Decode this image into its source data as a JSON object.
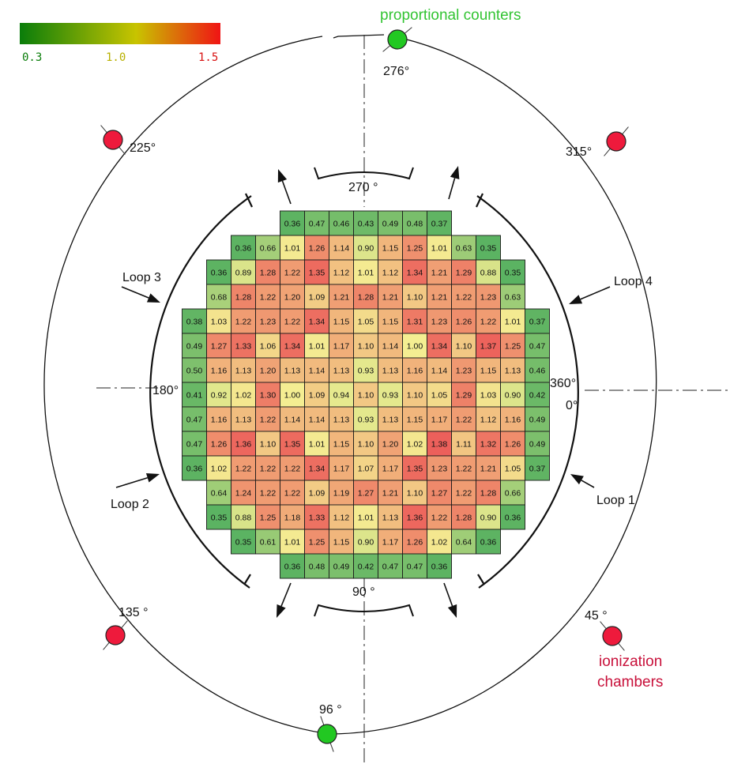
{
  "colorscale": {
    "min_label": "0.3",
    "mid_label": "1.0",
    "max_label": "1.5",
    "colors": [
      "#0a7d0a",
      "#c8c400",
      "#f01414"
    ]
  },
  "detectors": {
    "proportional_label": "proportional counters",
    "ionization_label_1": "ionization",
    "ionization_label_2": "chambers",
    "proportional_color": "#22c822",
    "ionization_color": "#ee1a3c",
    "proportional_angles": [
      "276°",
      "96 °"
    ],
    "ionization_angles": [
      "225°",
      "315°",
      "135 °",
      "45 °"
    ]
  },
  "shield_labels": {
    "top": "270 °",
    "bottom": "90 °",
    "left": "180°",
    "right_1": "360°",
    "right_2": "0°"
  },
  "loops": [
    "Loop 1",
    "Loop 2",
    "Loop 3",
    "Loop 4"
  ],
  "core_map": {
    "cols": 15,
    "rows": [
      {
        "start": 4,
        "values": [
          "0.36",
          "0.47",
          "0.46",
          "0.43",
          "0.49",
          "0.48",
          "0.37"
        ]
      },
      {
        "start": 2,
        "values": [
          "0.36",
          "0.66",
          "1.01",
          "1.26",
          "1.14",
          "0.90",
          "1.15",
          "1.25",
          "1.01",
          "0.63",
          "0.35"
        ]
      },
      {
        "start": 1,
        "values": [
          "0.36",
          "0.89",
          "1.28",
          "1.22",
          "1.35",
          "1.12",
          "1.01",
          "1.12",
          "1.34",
          "1.21",
          "1.29",
          "0.88",
          "0.35"
        ]
      },
      {
        "start": 1,
        "values": [
          "0.68",
          "1.28",
          "1.22",
          "1.20",
          "1.09",
          "1.21",
          "1.28",
          "1.21",
          "1.10",
          "1.21",
          "1.22",
          "1.23",
          "0.63"
        ]
      },
      {
        "start": 0,
        "values": [
          "0.38",
          "1.03",
          "1.22",
          "1.23",
          "1.22",
          "1.34",
          "1.15",
          "1.05",
          "1.15",
          "1.31",
          "1.23",
          "1.26",
          "1.22",
          "1.01",
          "0.37"
        ]
      },
      {
        "start": 0,
        "values": [
          "0.49",
          "1.27",
          "1.33",
          "1.06",
          "1.34",
          "1.01",
          "1.17",
          "1.10",
          "1.14",
          "1.00",
          "1.34",
          "1.10",
          "1.37",
          "1.25",
          "0.47"
        ]
      },
      {
        "start": 0,
        "values": [
          "0.50",
          "1.16",
          "1.13",
          "1.20",
          "1.13",
          "1.14",
          "1.13",
          "0.93",
          "1.13",
          "1.16",
          "1.14",
          "1.23",
          "1.15",
          "1.13",
          "0.46"
        ]
      },
      {
        "start": 0,
        "values": [
          "0.41",
          "0.92",
          "1.02",
          "1.30",
          "1.00",
          "1.09",
          "0.94",
          "1.10",
          "0.93",
          "1.10",
          "1.05",
          "1.29",
          "1.03",
          "0.90",
          "0.42"
        ]
      },
      {
        "start": 0,
        "values": [
          "0.47",
          "1.16",
          "1.13",
          "1.22",
          "1.14",
          "1.14",
          "1.13",
          "0.93",
          "1.13",
          "1.15",
          "1.17",
          "1.22",
          "1.12",
          "1.16",
          "0.49"
        ]
      },
      {
        "start": 0,
        "values": [
          "0.47",
          "1.26",
          "1.36",
          "1.10",
          "1.35",
          "1.01",
          "1.15",
          "1.10",
          "1.20",
          "1.02",
          "1.38",
          "1.11",
          "1.32",
          "1.26",
          "0.49"
        ]
      },
      {
        "start": 0,
        "values": [
          "0.36",
          "1.02",
          "1.22",
          "1.22",
          "1.22",
          "1.34",
          "1.17",
          "1.07",
          "1.17",
          "1.35",
          "1.23",
          "1.22",
          "1.21",
          "1.05",
          "0.37"
        ]
      },
      {
        "start": 1,
        "values": [
          "0.64",
          "1.24",
          "1.22",
          "1.22",
          "1.09",
          "1.19",
          "1.27",
          "1.21",
          "1.10",
          "1.27",
          "1.22",
          "1.28",
          "0.66"
        ]
      },
      {
        "start": 1,
        "values": [
          "0.35",
          "0.88",
          "1.25",
          "1.18",
          "1.33",
          "1.12",
          "1.01",
          "1.13",
          "1.36",
          "1.22",
          "1.28",
          "0.90",
          "0.36"
        ]
      },
      {
        "start": 2,
        "values": [
          "0.35",
          "0.61",
          "1.01",
          "1.25",
          "1.15",
          "0.90",
          "1.17",
          "1.26",
          "1.02",
          "0.64",
          "0.36"
        ]
      },
      {
        "start": 4,
        "values": [
          "0.36",
          "0.48",
          "0.49",
          "0.42",
          "0.47",
          "0.47",
          "0.36"
        ]
      }
    ]
  }
}
